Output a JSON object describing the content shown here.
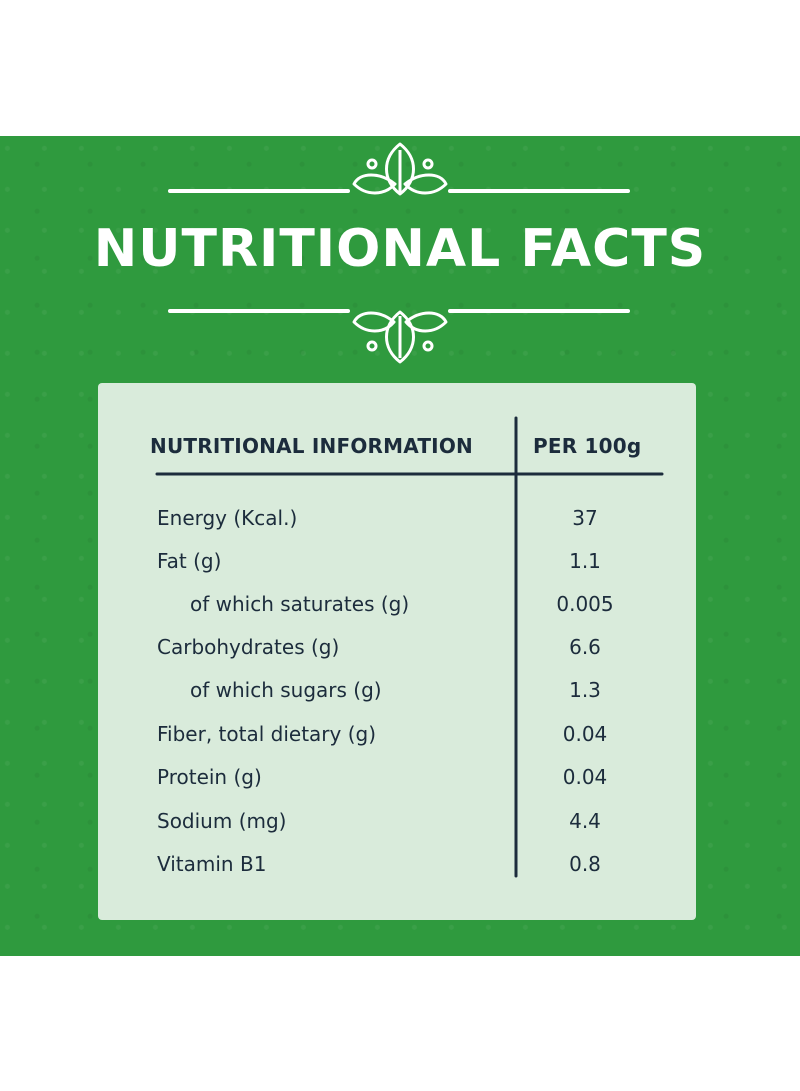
{
  "title": "NUTRITIONAL FACTS",
  "table": {
    "header_left": "NUTRITIONAL INFORMATION",
    "header_right": "PER 100g",
    "rows": [
      {
        "label": "Energy (Kcal.)",
        "value": "37"
      },
      {
        "label": "Fat (g)",
        "value": "1.1"
      },
      {
        "label": "of which saturates (g)",
        "value": "0.005"
      },
      {
        "label": "Carbohydrates (g)",
        "value": "6.6"
      },
      {
        "label": "of which sugars (g)",
        "value": "1.3"
      },
      {
        "label": "Fiber, total dietary (g)",
        "value": "0.04"
      },
      {
        "label": "Protein (g)",
        "value": "0.04"
      },
      {
        "label": "Sodium (mg)",
        "value": "4.4"
      },
      {
        "label": "Vitamin B1",
        "value": "0.8"
      }
    ]
  },
  "colors": {
    "background": "#2f9a3e",
    "card": "#d9ebdb",
    "text_dark": "#1c2c3c",
    "title_text": "#ffffff"
  }
}
